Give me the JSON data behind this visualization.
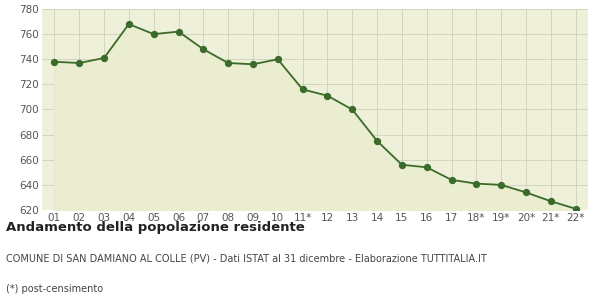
{
  "x_labels": [
    "01",
    "02",
    "03",
    "04",
    "05",
    "06",
    "07",
    "08",
    "09",
    "10",
    "11*",
    "12",
    "13",
    "14",
    "15",
    "16",
    "17",
    "18*",
    "19*",
    "20*",
    "21*",
    "22*"
  ],
  "y_values": [
    738,
    737,
    741,
    768,
    760,
    762,
    748,
    737,
    736,
    740,
    716,
    711,
    700,
    675,
    656,
    654,
    644,
    641,
    640,
    634,
    627,
    621
  ],
  "line_color": "#3a6b2a",
  "fill_color": "#eaedcf",
  "dot_color": "#3a6b2a",
  "background_color": "#eef0da",
  "grid_color": "#c8cbb0",
  "ylim_min": 620,
  "ylim_max": 780,
  "yticks": [
    620,
    640,
    660,
    680,
    700,
    720,
    740,
    760,
    780
  ],
  "title": "Andamento della popolazione residente",
  "subtitle": "COMUNE DI SAN DAMIANO AL COLLE (PV) - Dati ISTAT al 31 dicembre - Elaborazione TUTTITALIA.IT",
  "footnote": "(*) post-censimento",
  "title_fontsize": 9.5,
  "subtitle_fontsize": 7.0,
  "footnote_fontsize": 7.0,
  "tick_fontsize": 7.5
}
